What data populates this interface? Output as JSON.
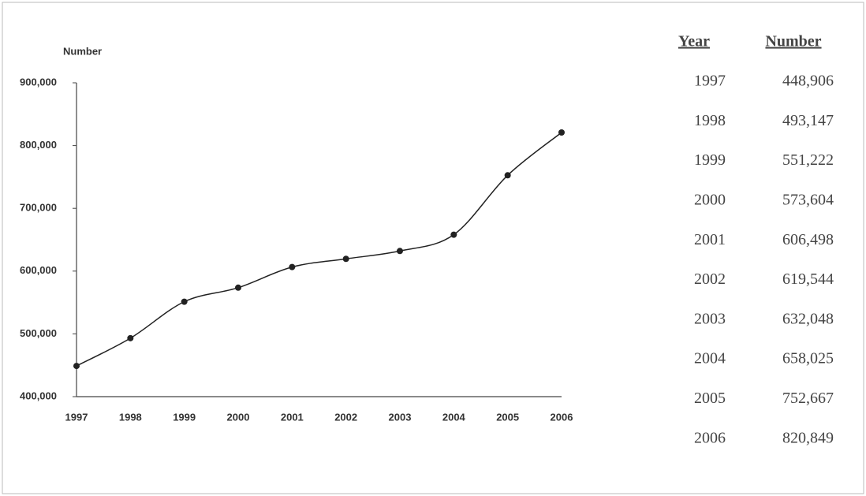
{
  "chart_data": {
    "type": "line",
    "ylabel": "Number",
    "categories": [
      "1997",
      "1998",
      "1999",
      "2000",
      "2001",
      "2002",
      "2003",
      "2004",
      "2005",
      "2006"
    ],
    "values": [
      448906,
      493147,
      551222,
      573604,
      606498,
      619544,
      632048,
      658025,
      752667,
      820849
    ],
    "value_labels": [
      "448,906",
      "493,147",
      "551,222",
      "573,604",
      "606,498",
      "619,544",
      "632,048",
      "658,025",
      "752,667",
      "820,849"
    ],
    "color": "#222222",
    "ylim": [
      400000,
      900000
    ],
    "yticks": [
      {
        "value": 400000,
        "label": "400,000"
      },
      {
        "value": 500000,
        "label": "500,000"
      },
      {
        "value": 600000,
        "label": "600,000"
      },
      {
        "value": 700000,
        "label": "700,000"
      },
      {
        "value": 800000,
        "label": "800,000"
      },
      {
        "value": 900000,
        "label": "900,000"
      }
    ],
    "table_headers": [
      "Year",
      "Number"
    ]
  }
}
